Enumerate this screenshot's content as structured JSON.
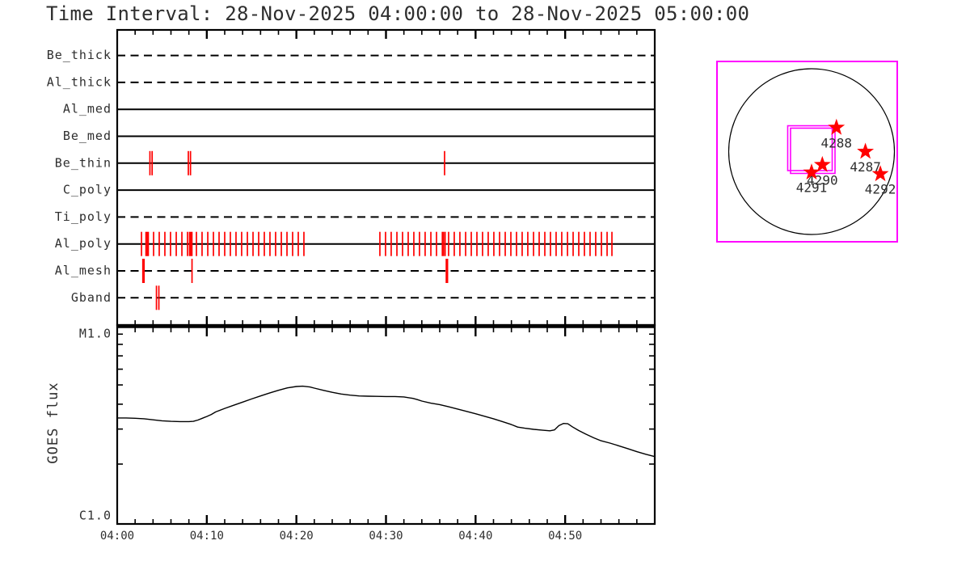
{
  "title": "Time Interval: 28-Nov-2025 04:00:00 to 28-Nov-2025 05:00:00",
  "colors": {
    "plot_line": "#000000",
    "exposure_mark": "#ff0000",
    "fov_box": "#ff00ff",
    "active_region_star": "#ff0000",
    "text": "#2e2e2e",
    "background": "#ffffff"
  },
  "chart_data": [
    {
      "id": "filter-timeline",
      "type": "line",
      "description": "XRT filter-wheel exposure timeline; red ticks mark exposures per filter",
      "x_axis": {
        "range_minutes": [
          0,
          60
        ],
        "start_time": "04:00",
        "end_time": "05:00",
        "tick_labels": [
          "04:00",
          "04:10",
          "04:20",
          "04:30",
          "04:40",
          "04:50"
        ],
        "major_tick_minutes": 10,
        "minor_tick_minutes": 2
      },
      "rows": [
        {
          "label": "Be_thick",
          "line": "dashed",
          "marks": []
        },
        {
          "label": "Al_thick",
          "line": "dashed",
          "marks": []
        },
        {
          "label": "Al_med",
          "line": "solid",
          "marks": []
        },
        {
          "label": "Be_med",
          "line": "solid",
          "marks": []
        },
        {
          "label": "Be_thin",
          "line": "solid",
          "marks": [
            [
              3.65,
              1
            ],
            [
              3.9,
              1
            ],
            [
              7.94,
              1
            ],
            [
              8.18,
              1
            ],
            [
              36.54,
              1
            ]
          ]
        },
        {
          "label": "C_poly",
          "line": "solid",
          "marks": []
        },
        {
          "label": "Ti_poly",
          "line": "dashed",
          "marks": []
        },
        {
          "label": "Al_poly",
          "line": "solid",
          "marks": [
            [
              2.71,
              1
            ],
            [
              3.34,
              3
            ],
            [
              4.06,
              1
            ],
            [
              4.69,
              1
            ],
            [
              5.32,
              1
            ],
            [
              5.95,
              1
            ],
            [
              6.59,
              1
            ],
            [
              7.22,
              1
            ],
            [
              7.85,
              1
            ],
            [
              8.21,
              3
            ],
            [
              8.84,
              1
            ],
            [
              9.47,
              1
            ],
            [
              10.11,
              1
            ],
            [
              10.74,
              1
            ],
            [
              11.37,
              1
            ],
            [
              12.0,
              1
            ],
            [
              12.63,
              1
            ],
            [
              13.26,
              1
            ],
            [
              13.89,
              1
            ],
            [
              14.53,
              1
            ],
            [
              15.16,
              1
            ],
            [
              15.79,
              1
            ],
            [
              16.42,
              1
            ],
            [
              17.05,
              1
            ],
            [
              17.68,
              1
            ],
            [
              18.32,
              1
            ],
            [
              18.95,
              1
            ],
            [
              19.58,
              1
            ],
            [
              20.21,
              1
            ],
            [
              20.84,
              1
            ],
            [
              29.32,
              1
            ],
            [
              29.95,
              1
            ],
            [
              30.58,
              1
            ],
            [
              31.22,
              1
            ],
            [
              31.85,
              1
            ],
            [
              32.48,
              1
            ],
            [
              33.11,
              1
            ],
            [
              33.74,
              1
            ],
            [
              34.37,
              1
            ],
            [
              35.01,
              1
            ],
            [
              35.64,
              1
            ],
            [
              36.36,
              2
            ],
            [
              36.6,
              1
            ],
            [
              36.99,
              1
            ],
            [
              37.62,
              1
            ],
            [
              38.25,
              1
            ],
            [
              38.89,
              1
            ],
            [
              39.52,
              1
            ],
            [
              40.15,
              1
            ],
            [
              40.78,
              1
            ],
            [
              41.41,
              1
            ],
            [
              42.04,
              1
            ],
            [
              42.68,
              1
            ],
            [
              43.31,
              1
            ],
            [
              43.94,
              1
            ],
            [
              44.57,
              1
            ],
            [
              45.2,
              1
            ],
            [
              45.83,
              1
            ],
            [
              46.47,
              1
            ],
            [
              47.1,
              1
            ],
            [
              47.73,
              1
            ],
            [
              48.36,
              1
            ],
            [
              48.99,
              1
            ],
            [
              49.62,
              1
            ],
            [
              50.26,
              1
            ],
            [
              50.89,
              1
            ],
            [
              51.52,
              1
            ],
            [
              52.15,
              1
            ],
            [
              52.78,
              1
            ],
            [
              53.41,
              1
            ],
            [
              54.05,
              1
            ],
            [
              54.68,
              1
            ],
            [
              55.22,
              1
            ]
          ]
        },
        {
          "label": "Al_mesh",
          "line": "dashed",
          "marks": [
            [
              2.93,
              2
            ],
            [
              8.35,
              1
            ],
            [
              36.8,
              2
            ]
          ]
        },
        {
          "label": "Gband",
          "line": "dashed",
          "marks": [
            [
              4.38,
              1
            ],
            [
              4.65,
              1
            ]
          ]
        }
      ]
    },
    {
      "id": "goes-flux",
      "type": "line",
      "ylabel": "GOES flux",
      "y_axis": {
        "scale": "log",
        "top_label": "M1.0",
        "bottom_label": "C1.0",
        "range_flux_c": [
          1,
          10
        ],
        "minor_ticks_flux_c": [
          2,
          3,
          4,
          5,
          6,
          7,
          8,
          9
        ]
      },
      "series": [
        {
          "name": "GOES flux",
          "x_minutes": [
            0,
            1,
            2,
            3,
            4,
            5,
            6,
            7,
            8,
            8.5,
            9,
            9.5,
            10,
            10.5,
            11,
            12,
            13,
            14,
            15,
            16,
            17,
            18,
            19,
            20,
            20.7,
            21.5,
            22,
            23,
            24,
            25,
            26,
            27,
            28,
            29,
            30,
            31,
            32,
            33,
            33.5,
            34,
            35,
            36,
            37,
            38,
            39,
            40,
            41,
            42,
            43,
            44,
            44.7,
            45.5,
            46.5,
            47.5,
            48.3,
            48.8,
            49.3,
            49.8,
            50.3,
            50.8,
            51.5,
            52.3,
            53.2,
            54,
            55,
            56,
            57,
            58,
            59,
            60
          ],
          "flux_c": [
            3.41,
            3.41,
            3.4,
            3.38,
            3.34,
            3.3,
            3.28,
            3.27,
            3.27,
            3.28,
            3.33,
            3.4,
            3.47,
            3.55,
            3.66,
            3.81,
            3.95,
            4.1,
            4.25,
            4.4,
            4.55,
            4.7,
            4.83,
            4.91,
            4.93,
            4.88,
            4.82,
            4.7,
            4.59,
            4.5,
            4.44,
            4.4,
            4.39,
            4.38,
            4.37,
            4.37,
            4.35,
            4.28,
            4.22,
            4.15,
            4.05,
            3.98,
            3.88,
            3.78,
            3.68,
            3.58,
            3.48,
            3.38,
            3.27,
            3.16,
            3.07,
            3.03,
            2.99,
            2.96,
            2.94,
            2.97,
            3.12,
            3.2,
            3.19,
            3.08,
            2.95,
            2.83,
            2.71,
            2.62,
            2.55,
            2.47,
            2.39,
            2.31,
            2.24,
            2.18
          ]
        }
      ]
    },
    {
      "id": "solar-disk",
      "type": "scatter",
      "description": "Full solar disk with NOAA active regions (red stars) and XRT field-of-view boxes",
      "active_regions": [
        {
          "label": "4288",
          "x_r": 0.3,
          "y_r": 0.29
        },
        {
          "label": "4287",
          "x_r": 0.65,
          "y_r": 0.0
        },
        {
          "label": "4292",
          "x_r": 0.83,
          "y_r": -0.27
        },
        {
          "label": "4290",
          "x_r": 0.13,
          "y_r": -0.16
        },
        {
          "label": "4291",
          "x_r": 0.0,
          "y_r": -0.25
        }
      ],
      "fov_boxes_r": [
        {
          "x": -0.288,
          "y_top": 0.312,
          "w": 0.537,
          "h": 0.541
        },
        {
          "x": -0.254,
          "y_top": 0.283,
          "w": 0.537,
          "h": 0.546
        }
      ]
    }
  ]
}
